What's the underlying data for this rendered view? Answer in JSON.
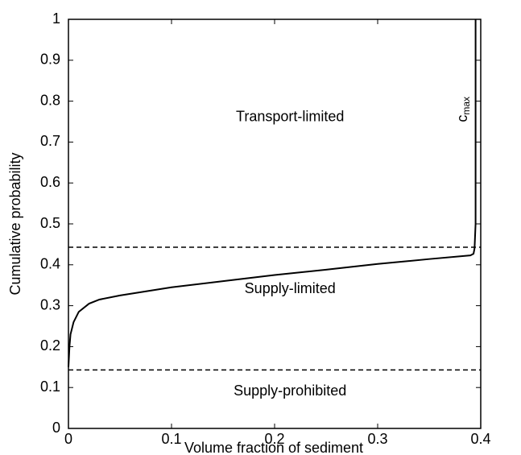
{
  "chart_data": {
    "type": "line",
    "xlabel": "Volume fraction of sediment",
    "ylabel": "Cumulative probability",
    "series": [
      {
        "color": "#000000",
        "x": [
          0,
          0.001,
          0.002,
          0.005,
          0.01,
          0.02,
          0.03,
          0.05,
          0.1,
          0.15,
          0.2,
          0.25,
          0.3,
          0.35,
          0.39,
          0.393,
          0.394,
          0.395,
          0.395
        ],
        "values": [
          0.15,
          0.2,
          0.23,
          0.26,
          0.285,
          0.305,
          0.315,
          0.325,
          0.345,
          0.36,
          0.375,
          0.388,
          0.402,
          0.414,
          0.423,
          0.427,
          0.44,
          0.5,
          1
        ]
      }
    ],
    "hlines": [
      0.443,
      0.143
    ],
    "annotations": [
      {
        "text": "Transport-limited",
        "x": 0.215,
        "y": 0.76
      },
      {
        "text": "Supply-limited",
        "x": 0.215,
        "y": 0.34
      },
      {
        "text": "Supply-prohibited",
        "x": 0.215,
        "y": 0.09
      }
    ],
    "cmax": {
      "text": "c",
      "subscript": "max",
      "x": 0.383,
      "y": 0.78
    },
    "xlim": [
      0,
      0.4
    ],
    "xticks": [
      0,
      0.1,
      0.2,
      0.3,
      0.4
    ],
    "ylim": [
      0,
      1
    ],
    "yticks": [
      0,
      0.1,
      0.2,
      0.3,
      0.4,
      0.5,
      0.6,
      0.7,
      0.8,
      0.9,
      1
    ]
  }
}
